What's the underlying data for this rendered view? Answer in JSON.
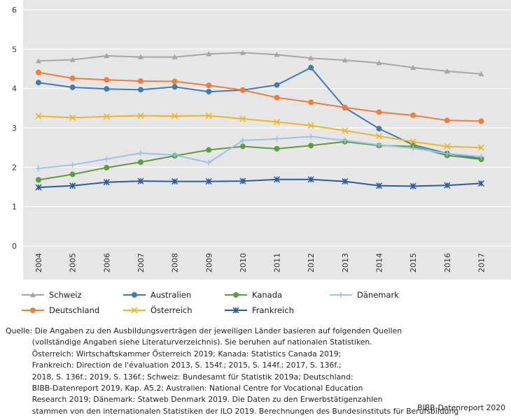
{
  "chart_data": {
    "type": "line",
    "title": "",
    "xlabel": "",
    "ylabel": "",
    "ylim": [
      0,
      6
    ],
    "yticks": [
      0,
      1,
      2,
      3,
      4,
      5,
      6
    ],
    "grid": "horizontal",
    "legend_position": "bottom",
    "categories": [
      "2004",
      "2005",
      "2006",
      "2007",
      "2008",
      "2009",
      "2010",
      "2011",
      "2012",
      "2013",
      "2014",
      "2015",
      "2016",
      "2017"
    ],
    "series": [
      {
        "name": "Schweiz",
        "color": "#a6a6a6",
        "marker": "triangle",
        "values": [
          4.7,
          4.73,
          4.83,
          4.8,
          4.8,
          4.88,
          4.91,
          4.86,
          4.77,
          4.72,
          4.65,
          4.53,
          4.44,
          4.37
        ]
      },
      {
        "name": "Australien",
        "color": "#3f7cb3",
        "marker": "circle",
        "values": [
          4.15,
          4.03,
          3.99,
          3.97,
          4.04,
          3.92,
          3.96,
          4.09,
          4.53,
          3.51,
          2.98,
          2.57,
          2.35,
          2.22
        ]
      },
      {
        "name": "Kanada",
        "color": "#5e9c3d",
        "marker": "circle",
        "values": [
          1.68,
          1.82,
          1.99,
          2.13,
          2.29,
          2.44,
          2.53,
          2.47,
          2.55,
          2.65,
          2.55,
          2.53,
          2.3,
          2.2
        ]
      },
      {
        "name": "Dänemark",
        "color": "#9dc3e6",
        "marker": "plus",
        "values": [
          1.97,
          2.06,
          2.21,
          2.36,
          2.31,
          2.12,
          2.68,
          2.72,
          2.78,
          2.68,
          2.57,
          2.48,
          2.35,
          2.27
        ]
      },
      {
        "name": "Deutschland",
        "color": "#f07d3a",
        "marker": "circle",
        "values": [
          4.41,
          4.26,
          4.22,
          4.19,
          4.18,
          4.08,
          3.96,
          3.77,
          3.65,
          3.52,
          3.4,
          3.32,
          3.19,
          3.17
        ]
      },
      {
        "name": "Österreich",
        "color": "#f0b425",
        "marker": "x",
        "values": [
          3.3,
          3.26,
          3.29,
          3.31,
          3.3,
          3.31,
          3.23,
          3.15,
          3.06,
          2.93,
          2.79,
          2.65,
          2.53,
          2.5
        ]
      },
      {
        "name": "Frankreich",
        "color": "#2a5c9e",
        "marker": "star",
        "values": [
          1.49,
          1.53,
          1.62,
          1.65,
          1.64,
          1.64,
          1.65,
          1.69,
          1.69,
          1.64,
          1.53,
          1.52,
          1.54,
          1.59
        ]
      }
    ]
  },
  "source": {
    "lines": [
      "Quelle: Die Angaben zu den Ausbildungsverträgen der jeweiligen Länder basieren auf folgenden Quellen",
      "           (vollständige Angaben siehe Literaturverzeichnis). Sie beruhen auf nationalen Statistiken.",
      "           Österreich: Wirtschaftskammer Österreich 2019; Kanada: Statistics Canada 2019;",
      "           Frankreich: Direction de l'évaluation 2013, S. 154f.; 2015, S. 144f.; 2017, S. 136f.;",
      "           2018, S. 136f.; 2019, S. 136f.; Schweiz: Bundesamt für Statistik 2019a; Deutschland:",
      "           BIBB-Datenreport 2019, Kap. A5.2; Australien: National Centre for Vocational Education",
      "           Research 2019; Dänemark: Statweb Denmark 2019. Die Daten zu den Erwerbstätigenzahlen",
      "           stammen von den internationalen Statistiken der ILO 2019. Berechnungen des Bundesinstituts für Berufsbildung"
    ],
    "credit": "BIBB-Datenreport 2020"
  }
}
